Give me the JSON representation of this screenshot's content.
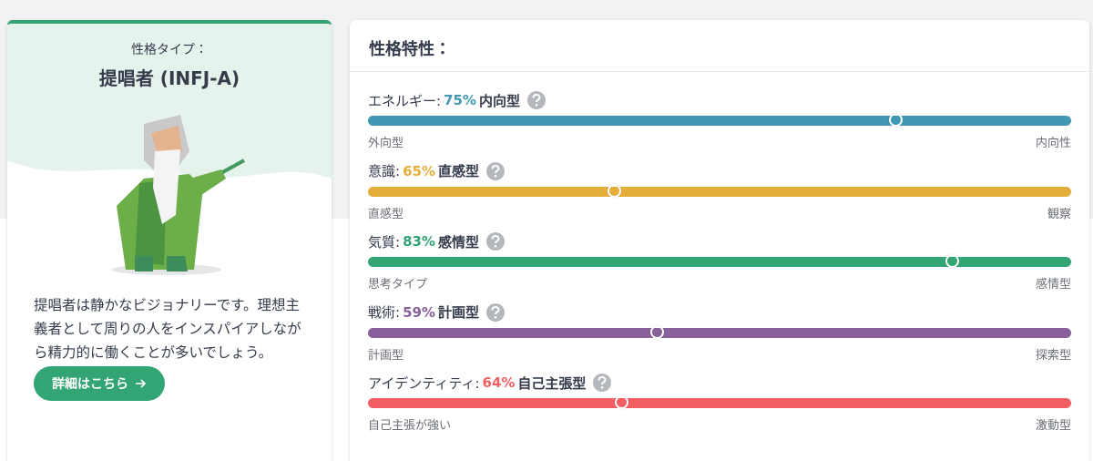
{
  "profile": {
    "label": "性格タイプ：",
    "title": "提唱者 (INFJ-A)",
    "description": "提唱者は静かなビジョナリーです。理想主義者として周りの人をインスパイアしながら精力的に働くことが多いでしょう。",
    "button": "詳細はこちら"
  },
  "traits_panel": {
    "title": "性格特性：",
    "traits": [
      {
        "name": "エネルギー:",
        "percent": 75,
        "percent_label": "75%",
        "type": "内向型",
        "left_label": "外向型",
        "right_label": "内向性",
        "measured_from": "left",
        "color": "#4298b4"
      },
      {
        "name": "意識:",
        "percent": 65,
        "percent_label": "65%",
        "type": "直感型",
        "left_label": "直感型",
        "right_label": "観察",
        "measured_from": "right",
        "color": "#e4ae3a"
      },
      {
        "name": "気質:",
        "percent": 83,
        "percent_label": "83%",
        "type": "感情型",
        "left_label": "思考タイプ",
        "right_label": "感情型",
        "measured_from": "left",
        "color": "#33a474"
      },
      {
        "name": "戦術:",
        "percent": 59,
        "percent_label": "59%",
        "type": "計画型",
        "left_label": "計画型",
        "right_label": "探索型",
        "measured_from": "right",
        "color": "#88619a"
      },
      {
        "name": "アイデンティティ:",
        "percent": 64,
        "percent_label": "64%",
        "type": "自己主張型",
        "left_label": "自己主張が強い",
        "right_label": "激動型",
        "measured_from": "right",
        "color": "#f25e62"
      }
    ]
  }
}
